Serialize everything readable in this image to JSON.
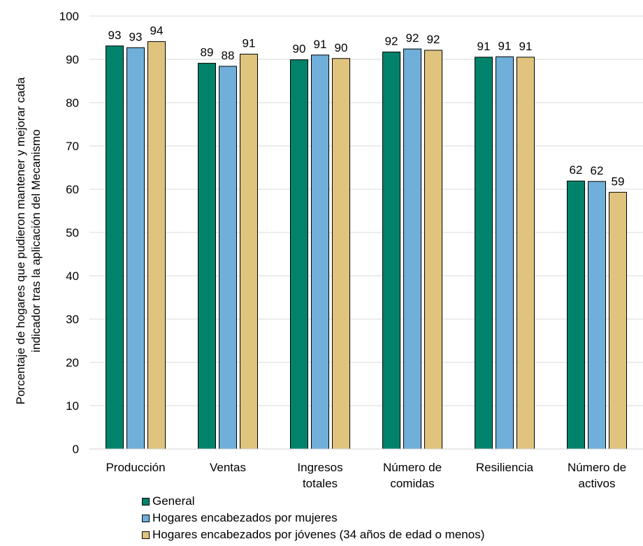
{
  "chart_data": {
    "type": "bar",
    "ylabel": "Porcentaje de hogares que pudieron mantener y mejorar cada indicador tras la aplicación del Mecanismo",
    "ylabel_lines": [
      "Porcentaje de hogares que pudieron mantener y mejorar cada",
      "indicador tras la aplicación del Mecanismo"
    ],
    "ylim": [
      0,
      100
    ],
    "yticks": [
      0,
      10,
      20,
      30,
      40,
      50,
      60,
      70,
      80,
      90,
      100
    ],
    "grid": true,
    "legend_position": "bottom",
    "categories": [
      [
        "Producción"
      ],
      [
        "Ventas"
      ],
      [
        "Ingresos",
        "totales"
      ],
      [
        "Número de",
        "comidas"
      ],
      [
        "Resiliencia"
      ],
      [
        "Número de",
        "activos"
      ]
    ],
    "series": [
      {
        "name": "General",
        "color": "#00826B",
        "values": [
          93.1,
          89.1,
          89.9,
          91.7,
          90.5,
          61.9
        ],
        "labels": [
          "93",
          "89",
          "90",
          "92",
          "91",
          "62"
        ]
      },
      {
        "name": "Hogares encabezados por mujeres",
        "color": "#6FAFD9",
        "values": [
          92.7,
          88.4,
          91.0,
          92.4,
          90.6,
          61.8
        ],
        "labels": [
          "93",
          "88",
          "91",
          "92",
          "91",
          "62"
        ]
      },
      {
        "name": "Hogares encabezados por jóvenes (34 años de edad o menos)",
        "color": "#E0C47E",
        "values": [
          94.1,
          91.2,
          90.2,
          92.1,
          90.5,
          59.3
        ],
        "labels": [
          "94",
          "91",
          "90",
          "92",
          "91",
          "59"
        ]
      }
    ]
  }
}
